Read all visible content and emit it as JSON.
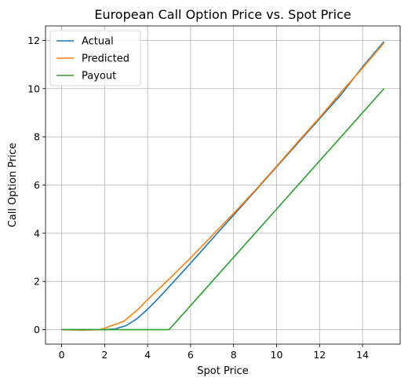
{
  "chart_data": {
    "type": "line",
    "title": "European Call Option Price vs. Spot Price",
    "xlabel": "Spot Price",
    "ylabel": "Call Option Price",
    "xlim": [
      -0.75,
      15.75
    ],
    "ylim": [
      -0.6,
      12.6
    ],
    "xticks": [
      0,
      2,
      4,
      6,
      8,
      10,
      12,
      14
    ],
    "yticks": [
      0,
      2,
      4,
      6,
      8,
      10,
      12
    ],
    "grid": true,
    "legend_position": "top-left",
    "series": [
      {
        "name": "Actual",
        "color": "#1f77b4",
        "x": [
          0,
          1,
          2,
          2.5,
          3,
          3.5,
          4,
          4.5,
          5,
          5.5,
          6,
          6.5,
          7,
          7.5,
          8,
          9,
          10,
          11,
          12,
          13,
          14,
          15
        ],
        "y": [
          0,
          0,
          0,
          0.03,
          0.17,
          0.45,
          0.85,
          1.3,
          1.78,
          2.27,
          2.76,
          3.26,
          3.76,
          4.26,
          4.75,
          5.75,
          6.75,
          7.75,
          8.75,
          9.75,
          10.9,
          11.95
        ]
      },
      {
        "name": "Predicted",
        "color": "#ff7f0e",
        "x": [
          0,
          1,
          1.8,
          2.9,
          3.5,
          4,
          5,
          6,
          7,
          8,
          9,
          10,
          11,
          12,
          13,
          14,
          15
        ],
        "y": [
          0,
          -0.02,
          0,
          0.35,
          0.8,
          1.25,
          2.1,
          2.98,
          3.9,
          4.82,
          5.78,
          6.78,
          7.8,
          8.8,
          9.85,
          10.85,
          11.9
        ]
      },
      {
        "name": "Payout",
        "color": "#2ca02c",
        "x": [
          0,
          5,
          15
        ],
        "y": [
          0,
          0,
          10
        ]
      }
    ]
  }
}
